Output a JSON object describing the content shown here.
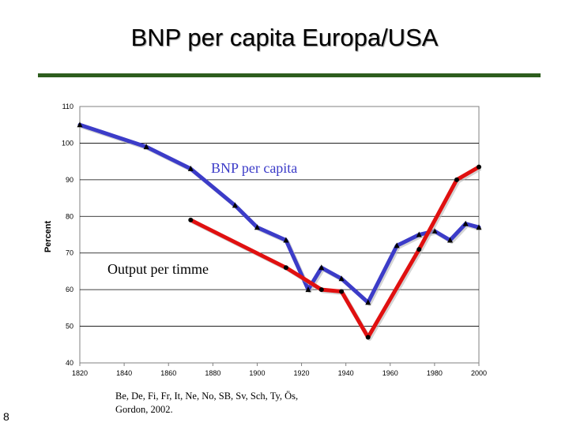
{
  "slide": {
    "title": "BNP per capita Europa/USA",
    "number": "8",
    "source_note": "Be, De, Fi, Fr, It, Ne, No, SB, Sv, Sch, Ty, Ös,\nGordon, 2002."
  },
  "chart_data": {
    "type": "line",
    "title": "BNP per capita Europa/USA",
    "xlabel": "",
    "ylabel": "Percent",
    "xlim": [
      1820,
      2000
    ],
    "ylim": [
      40,
      110
    ],
    "x_ticks": [
      "1820",
      "1840",
      "1860",
      "1880",
      "1900",
      "1920",
      "1940",
      "1960",
      "1980",
      "2000"
    ],
    "y_ticks": [
      "110",
      "100",
      "90",
      "80",
      "70",
      "60",
      "50",
      "40"
    ],
    "grid": "horizontal",
    "series": [
      {
        "name": "BNP per capita",
        "color": "#3c3cc8",
        "marker": "triangle",
        "x": [
          1820,
          1850,
          1870,
          1890,
          1900,
          1913,
          1923,
          1929,
          1938,
          1950,
          1963,
          1973,
          1980,
          1987,
          1994,
          2000
        ],
        "y": [
          105,
          99,
          93,
          83,
          77,
          73.5,
          60,
          66,
          63,
          56.5,
          72,
          75,
          76,
          73.5,
          78,
          77
        ]
      },
      {
        "name": "Output per timme",
        "color": "#e01010",
        "marker": "circle",
        "x": [
          1870,
          1913,
          1929,
          1938,
          1950,
          1973,
          1990,
          2000
        ],
        "y": [
          79,
          66,
          60,
          59.5,
          47,
          71,
          90,
          93.5
        ]
      }
    ],
    "annotations": [
      {
        "text": "BNP per capita",
        "series": "BNP per capita"
      },
      {
        "text": "Output per timme",
        "series": "Output per timme"
      }
    ]
  }
}
